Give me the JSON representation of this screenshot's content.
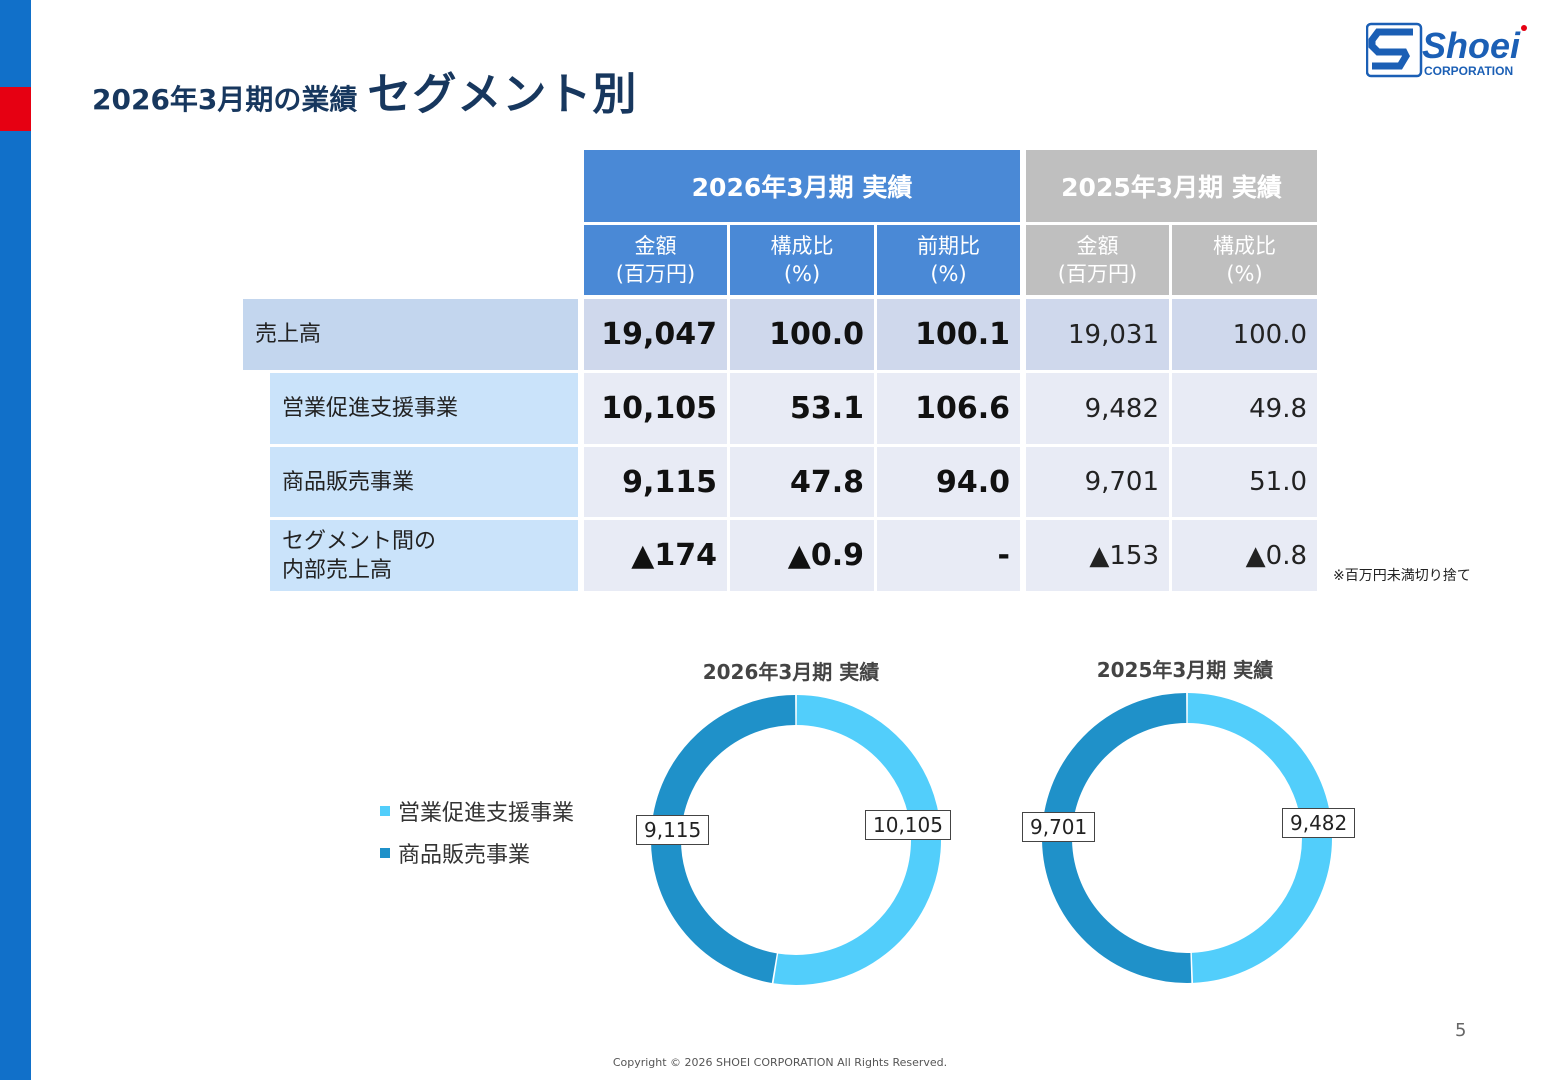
{
  "header": {
    "title_small": "2026年3月期の業績",
    "title_large": "セグメント別"
  },
  "logo": {
    "brand": "Shoei",
    "sub": "CORPORATION",
    "color": "#1b5fb5"
  },
  "table": {
    "current_header": "2026年3月期 実績",
    "previous_header": "2025年3月期 実績",
    "sub_headers": {
      "amount": "金額",
      "amount_unit": "(百万円)",
      "ratio": "構成比",
      "ratio_unit": "(%)",
      "yoy": "前期比",
      "yoy_unit": "(%)"
    },
    "rows": [
      {
        "label": "売上高",
        "cur_amount": "19,047",
        "cur_ratio": "100.0",
        "yoy": "100.1",
        "prev_amount": "19,031",
        "prev_ratio": "100.0"
      },
      {
        "label": "営業促進支援事業",
        "cur_amount": "10,105",
        "cur_ratio": "53.1",
        "yoy": "106.6",
        "prev_amount": "9,482",
        "prev_ratio": "49.8"
      },
      {
        "label": "商品販売事業",
        "cur_amount": "9,115",
        "cur_ratio": "47.8",
        "yoy": "94.0",
        "prev_amount": "9,701",
        "prev_ratio": "51.0"
      },
      {
        "label_line1": "セグメント間の",
        "label_line2": "内部売上高",
        "cur_amount": "▲174",
        "cur_ratio": "▲0.9",
        "yoy": "-",
        "prev_amount": "▲153",
        "prev_ratio": "▲0.8"
      }
    ],
    "note": "※百万円未満切り捨て"
  },
  "legend": {
    "items": [
      {
        "label": "営業促進支援事業",
        "color": "#52cefb"
      },
      {
        "label": "商品販売事業",
        "color": "#1f91c9"
      }
    ]
  },
  "chart_data": [
    {
      "type": "pie",
      "donut": true,
      "title": "2026年3月期 実績",
      "categories": [
        "営業促進支援事業",
        "商品販売事業"
      ],
      "values": [
        10105,
        9115
      ],
      "labels": [
        "10,105",
        "9,115"
      ],
      "colors": [
        "#52cefb",
        "#1f91c9"
      ]
    },
    {
      "type": "pie",
      "donut": true,
      "title": "2025年3月期 実績",
      "categories": [
        "営業促進支援事業",
        "商品販売事業"
      ],
      "values": [
        9482,
        9701
      ],
      "labels": [
        "9,482",
        "9,701"
      ],
      "colors": [
        "#52cefb",
        "#1f91c9"
      ]
    }
  ],
  "footer": {
    "page_number": "5",
    "copyright": "Copyright © 2026 SHOEI CORPORATION All Rights Reserved."
  }
}
